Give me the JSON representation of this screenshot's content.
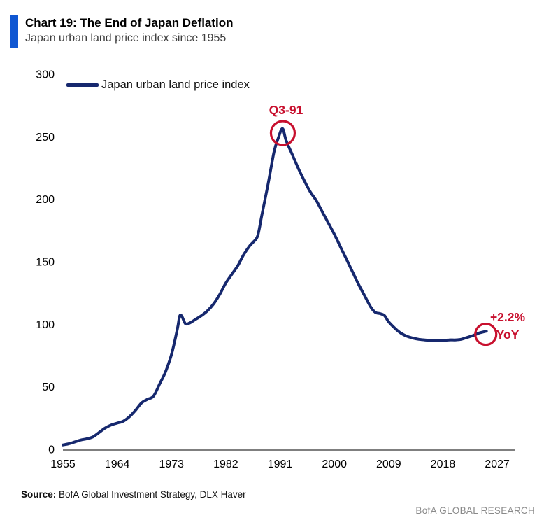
{
  "header": {
    "title": "Chart 19: The End of Japan Deflation",
    "subtitle": "Japan urban land price index since 1955"
  },
  "legend": {
    "label": "Japan urban land price index"
  },
  "annotations": {
    "peak_label": "Q3-91",
    "end_line1": "+2.2%",
    "end_line2": "YoY"
  },
  "footer": {
    "source_label": "Source:",
    "source_text": "BofA Global Investment Strategy, DLX Haver",
    "brand": "BofA GLOBAL RESEARCH"
  },
  "colors": {
    "line": "#16286e",
    "accent_red": "#c8102e",
    "title_bar_blue": "#1057d2",
    "axis_gray": "#7f7f7f",
    "tick_text": "#000000"
  },
  "chart_data": {
    "type": "line",
    "title": "Chart 19: The End of Japan Deflation",
    "subtitle": "Japan urban land price index since 1955",
    "xlabel": "",
    "ylabel": "",
    "x_domain": [
      1955,
      2030
    ],
    "y_domain": [
      0,
      300
    ],
    "x_ticks": [
      1955,
      1964,
      1973,
      1982,
      1991,
      2000,
      2009,
      2018,
      2027
    ],
    "y_ticks": [
      0,
      50,
      100,
      150,
      200,
      250,
      300
    ],
    "grid": false,
    "legend_position": "top-left",
    "series": [
      {
        "name": "Japan urban land price index",
        "color": "#16286e",
        "points": [
          [
            1955,
            3.5
          ],
          [
            1956,
            4.5
          ],
          [
            1957,
            6
          ],
          [
            1958,
            7.5
          ],
          [
            1959,
            8.5
          ],
          [
            1960,
            10
          ],
          [
            1961,
            13.5
          ],
          [
            1962,
            17
          ],
          [
            1963,
            19.5
          ],
          [
            1964,
            21
          ],
          [
            1965,
            22.5
          ],
          [
            1966,
            26
          ],
          [
            1967,
            31
          ],
          [
            1968,
            37
          ],
          [
            1969,
            40
          ],
          [
            1970,
            42.5
          ],
          [
            1971,
            52
          ],
          [
            1972,
            62
          ],
          [
            1973,
            76
          ],
          [
            1974,
            97
          ],
          [
            1974.35,
            106.5
          ],
          [
            1974.7,
            106.5
          ],
          [
            1975.3,
            100.5
          ],
          [
            1976,
            101
          ],
          [
            1977,
            104
          ],
          [
            1978,
            107
          ],
          [
            1979,
            111
          ],
          [
            1980,
            116.5
          ],
          [
            1981,
            124
          ],
          [
            1982,
            133
          ],
          [
            1983,
            140
          ],
          [
            1984,
            147
          ],
          [
            1985,
            156
          ],
          [
            1986,
            163
          ],
          [
            1986.6,
            166
          ],
          [
            1987.3,
            171
          ],
          [
            1988,
            188
          ],
          [
            1989,
            212
          ],
          [
            1990,
            238
          ],
          [
            1990.7,
            249
          ],
          [
            1991.4,
            256.5
          ],
          [
            1992,
            247
          ],
          [
            1993,
            236
          ],
          [
            1994,
            225
          ],
          [
            1995,
            215
          ],
          [
            1996,
            206
          ],
          [
            1997,
            199
          ],
          [
            1998,
            190
          ],
          [
            1999,
            181
          ],
          [
            2000,
            172
          ],
          [
            2001,
            162
          ],
          [
            2002,
            152
          ],
          [
            2003,
            142
          ],
          [
            2004,
            132
          ],
          [
            2005,
            123
          ],
          [
            2006,
            114
          ],
          [
            2006.8,
            109.5
          ],
          [
            2007.6,
            108.5
          ],
          [
            2008.3,
            107
          ],
          [
            2009,
            102
          ],
          [
            2010,
            97
          ],
          [
            2011,
            93
          ],
          [
            2012,
            90.5
          ],
          [
            2013,
            89
          ],
          [
            2014,
            88
          ],
          [
            2015,
            87.5
          ],
          [
            2016,
            87
          ],
          [
            2017,
            87
          ],
          [
            2018,
            87
          ],
          [
            2019,
            87.5
          ],
          [
            2020,
            87.5
          ],
          [
            2021,
            88
          ],
          [
            2022,
            89.5
          ],
          [
            2023,
            91
          ],
          [
            2024,
            93
          ],
          [
            2025.2,
            94.5
          ]
        ]
      }
    ],
    "annotations": [
      {
        "label": "Q3-91",
        "year": 1991.45,
        "value": 253,
        "circle_radius": 17
      },
      {
        "label": "+2.2% YoY",
        "year": 2025.1,
        "value": 92,
        "circle_radius": 15
      }
    ]
  }
}
